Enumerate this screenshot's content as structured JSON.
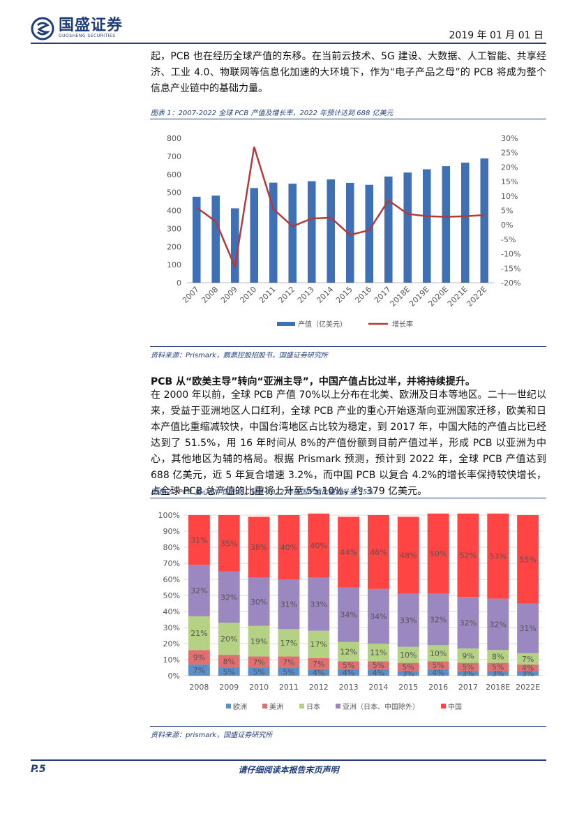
{
  "header": {
    "company": "国盛证券",
    "company_en": "GUOSHENG SECURITIES",
    "date": "2019 年 01 月 01 日"
  },
  "intro_paragraph": "起，PCB 也在经历全球产值的东移。在当前云技术、5G 建设、大数据、人工智能、共享经济、工业 4.0、物联网等信息化加速的大环境下，作为“电子产品之母”的 PCB 将成为整个信息产业链中的基础力量。",
  "figure1": {
    "caption": "图表 1：2007-2022 全球 PCB 产值及增长率，2022 年预计达到 688 亿美元",
    "source": "资料来源：Prismark，鹏鼎控股招股书，国盛证券研究所",
    "legend_bar": "产值（亿美元）",
    "legend_line": "增长率"
  },
  "section_heading": "PCB 从“欧美主导”转向“亚洲主导”，中国产值占比过半，并将持续提升。",
  "section_paragraph": "在 2000 年以前，全球 PCB 产值 70%以上分布在北美、欧洲及日本等地区。二十一世纪以来，受益于亚洲地区人口红利，全球 PCB 产业的重心开始逐渐向亚洲国家迁移，欧美和日本产值比重缩减较快，中国台湾地区占比较为稳定，到 2017 年，中国大陆的产值占比已经达到了 51.5%，用 16 年时间从 8%的产值份额到目前产值过半，形成 PCB 以亚洲为中心，其他地区为辅的格局。根据 Prismark 预测，预计到 2022 年，全球 PCB 产值达到 688 亿美元，近 5 年复合增速 3.2%，而中国 PCB 以复合 4.2%的增长率保持较快增长，占全球 PCB 总产值的比重将上升至 55.10%，约 379 亿美元。",
  "figure2": {
    "caption": "图表 2：PCB 重心向中国迁移，预计 2022 年中国产值比重提升至 55%",
    "source": "资料来源：prismark，国盛证券研究所"
  },
  "footer": {
    "page": "P.5",
    "notice": "请仔细阅读本报告末页声明"
  },
  "chart_data": [
    {
      "type": "bar",
      "categories": [
        "2007",
        "2008",
        "2009",
        "2010",
        "2011",
        "2012",
        "2013",
        "2014",
        "2015",
        "2016",
        "2017",
        "2018E",
        "2019E",
        "2020E",
        "2021E",
        "2022E"
      ],
      "series": [
        {
          "name": "产值（亿美元）",
          "type": "bar",
          "axis": "left",
          "color": "#3f6fb5",
          "values": [
            476,
            482,
            412,
            524,
            554,
            548,
            562,
            572,
            553,
            542,
            588,
            610,
            628,
            645,
            665,
            688
          ]
        },
        {
          "name": "增长率",
          "type": "line",
          "axis": "right",
          "color": "#b23a3a",
          "values": [
            6.0,
            1.2,
            -14.5,
            27.0,
            5.5,
            -0.5,
            2.2,
            2.5,
            -3.5,
            -1.8,
            8.5,
            3.8,
            3.0,
            2.8,
            3.0,
            3.4
          ]
        }
      ],
      "ylim": [
        0,
        800
      ],
      "yticks": [
        "0",
        "100",
        "200",
        "300",
        "400",
        "500",
        "600",
        "700",
        "800"
      ],
      "y2lim": [
        -20,
        30
      ],
      "y2ticks": [
        "-20%",
        "-15%",
        "-10%",
        "-5%",
        "0%",
        "5%",
        "10%",
        "15%",
        "20%",
        "25%",
        "30%"
      ],
      "legend": "bottom"
    },
    {
      "type": "bar",
      "stacked": true,
      "categories": [
        "2008",
        "2009",
        "2010",
        "2011",
        "2012",
        "2013",
        "2014",
        "2015",
        "2016",
        "2017",
        "2018E",
        "2022E"
      ],
      "ylim": [
        0,
        100
      ],
      "yticks": [
        "0%",
        "10%",
        "20%",
        "30%",
        "40%",
        "50%",
        "60%",
        "70%",
        "80%",
        "90%",
        "100%"
      ],
      "series": [
        {
          "name": "欧洲",
          "color": "#5b8fc9",
          "values": [
            7,
            5,
            5,
            5,
            4,
            4,
            4,
            3,
            4,
            3,
            3,
            3
          ]
        },
        {
          "name": "美洲",
          "color": "#e07070",
          "values": [
            9,
            8,
            7,
            7,
            7,
            5,
            5,
            5,
            5,
            5,
            5,
            4
          ]
        },
        {
          "name": "日本",
          "color": "#b4d184",
          "values": [
            21,
            20,
            19,
            17,
            17,
            12,
            11,
            10,
            10,
            9,
            8,
            7
          ]
        },
        {
          "name": "亚洲（日本、中国除外）",
          "color": "#9b88c0",
          "values": [
            32,
            32,
            30,
            31,
            33,
            34,
            34,
            33,
            32,
            32,
            32,
            31
          ]
        },
        {
          "name": "中国",
          "color": "#ff4444",
          "values": [
            31,
            35,
            38,
            40,
            40,
            44,
            46,
            48,
            50,
            52,
            53,
            55
          ]
        }
      ],
      "legend": "bottom"
    }
  ]
}
